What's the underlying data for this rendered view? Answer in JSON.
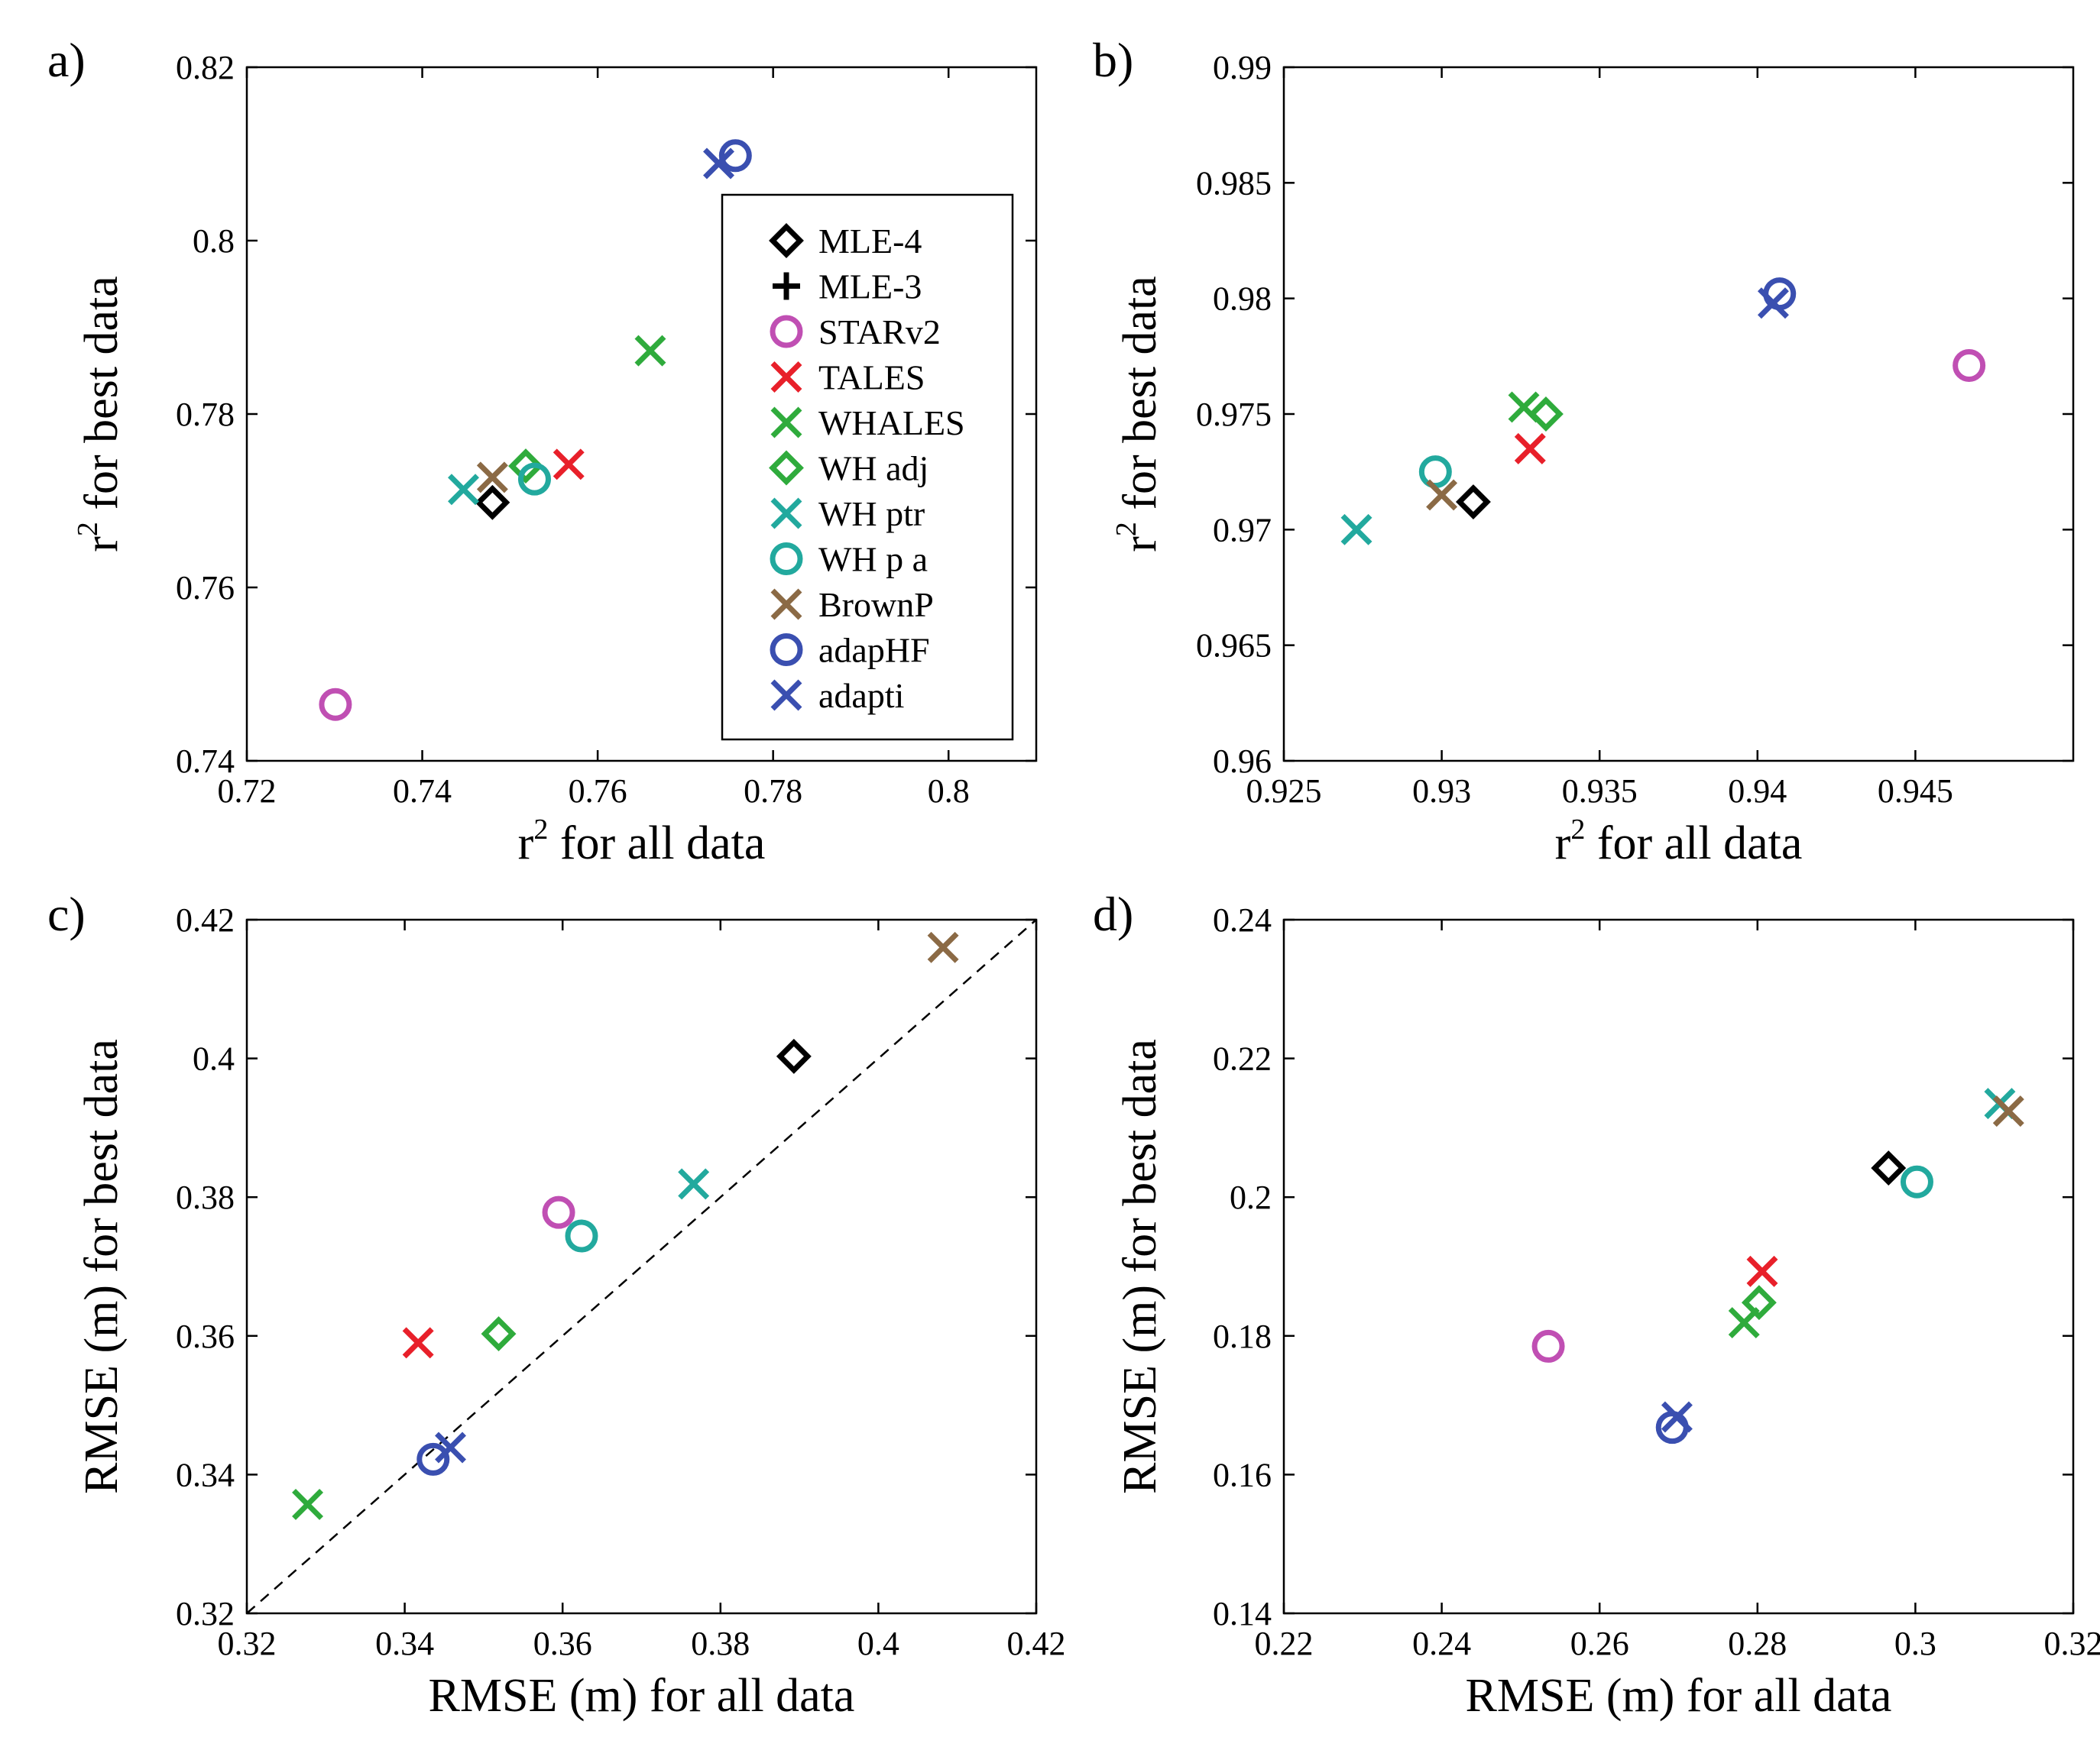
{
  "legend": [
    {
      "name": "MLE-4",
      "marker": "diamond",
      "color": "#000000"
    },
    {
      "name": "MLE-3",
      "marker": "plus",
      "color": "#000000"
    },
    {
      "name": "STARv2",
      "marker": "circle",
      "color": "#c04fb3"
    },
    {
      "name": "TALES",
      "marker": "x",
      "color": "#e8202a"
    },
    {
      "name": "WHALES",
      "marker": "x",
      "color": "#2fab3c"
    },
    {
      "name": "WH adj",
      "marker": "diamond",
      "color": "#2fab3c"
    },
    {
      "name": "WH ptr",
      "marker": "x",
      "color": "#22a99e"
    },
    {
      "name": "WH p a",
      "marker": "circle",
      "color": "#22a99e"
    },
    {
      "name": "BrownP",
      "marker": "x",
      "color": "#8b6a45"
    },
    {
      "name": "adapHF",
      "marker": "circle",
      "color": "#3a4fb0"
    },
    {
      "name": "adapti",
      "marker": "x",
      "color": "#3a4fb0"
    }
  ],
  "chart_data": [
    {
      "type": "scatter",
      "panel_label": "a)",
      "xlabel": "r",
      "ylabel": "r",
      "label_sup": "2",
      "xlabel_rest": " for all data",
      "ylabel_rest": " for best data",
      "xlim": [
        0.72,
        0.81
      ],
      "ylim": [
        0.74,
        0.82
      ],
      "xticks": [
        0.72,
        0.74,
        0.76,
        0.78,
        0.8
      ],
      "xtick_labels": [
        "0.72",
        "0.74",
        "0.76",
        "0.78",
        "0.8"
      ],
      "yticks": [
        0.74,
        0.76,
        0.78,
        0.8,
        0.82
      ],
      "ytick_labels": [
        "0.74",
        "0.76",
        "0.78",
        "0.8",
        "0.82"
      ],
      "legend": true,
      "points": [
        {
          "series": "MLE-4",
          "x": 0.748,
          "y": 0.7698
        },
        {
          "series": "STARv2",
          "x": 0.7301,
          "y": 0.7465
        },
        {
          "series": "TALES",
          "x": 0.7567,
          "y": 0.7742
        },
        {
          "series": "WHALES",
          "x": 0.766,
          "y": 0.7873
        },
        {
          "series": "WH adj",
          "x": 0.7518,
          "y": 0.774
        },
        {
          "series": "WH ptr",
          "x": 0.7447,
          "y": 0.7713
        },
        {
          "series": "WH p a",
          "x": 0.7528,
          "y": 0.7725
        },
        {
          "series": "BrownP",
          "x": 0.748,
          "y": 0.7727
        },
        {
          "series": "adapHF",
          "x": 0.7757,
          "y": 0.8098
        },
        {
          "series": "adapti",
          "x": 0.7738,
          "y": 0.8089
        }
      ]
    },
    {
      "type": "scatter",
      "panel_label": "b)",
      "xlabel": "r",
      "ylabel": "r",
      "label_sup": "2",
      "xlabel_rest": " for all data",
      "ylabel_rest": " for best data",
      "xlim": [
        0.925,
        0.95
      ],
      "ylim": [
        0.96,
        0.99
      ],
      "xticks": [
        0.925,
        0.93,
        0.935,
        0.94,
        0.945
      ],
      "xtick_labels": [
        "0.925",
        "0.93",
        "0.935",
        "0.94",
        "0.945"
      ],
      "yticks": [
        0.96,
        0.965,
        0.97,
        0.975,
        0.98,
        0.985,
        0.99
      ],
      "ytick_labels": [
        "0.96",
        "0.965",
        "0.97",
        "0.975",
        "0.98",
        "0.985",
        "0.99"
      ],
      "legend": false,
      "points": [
        {
          "series": "MLE-4",
          "x": 0.931,
          "y": 0.9712
        },
        {
          "series": "STARv2",
          "x": 0.9467,
          "y": 0.9771
        },
        {
          "series": "TALES",
          "x": 0.9328,
          "y": 0.9735
        },
        {
          "series": "WHALES",
          "x": 0.9326,
          "y": 0.9753
        },
        {
          "series": "WH adj",
          "x": 0.9333,
          "y": 0.975
        },
        {
          "series": "WH ptr",
          "x": 0.9273,
          "y": 0.97
        },
        {
          "series": "WH p a",
          "x": 0.9298,
          "y": 0.9725
        },
        {
          "series": "BrownP",
          "x": 0.93,
          "y": 0.9715
        },
        {
          "series": "adapHF",
          "x": 0.9407,
          "y": 0.9802
        },
        {
          "series": "adapti",
          "x": 0.9405,
          "y": 0.9798
        }
      ]
    },
    {
      "type": "scatter",
      "panel_label": "c)",
      "xlabel": "RMSE (m) for all data",
      "ylabel": "RMSE (m) for best data",
      "xlim": [
        0.32,
        0.42
      ],
      "ylim": [
        0.32,
        0.42
      ],
      "xticks": [
        0.32,
        0.34,
        0.36,
        0.38,
        0.4,
        0.42
      ],
      "xtick_labels": [
        "0.32",
        "0.34",
        "0.36",
        "0.38",
        "0.4",
        "0.42"
      ],
      "yticks": [
        0.32,
        0.34,
        0.36,
        0.38,
        0.4,
        0.42
      ],
      "ytick_labels": [
        "0.32",
        "0.34",
        "0.36",
        "0.38",
        "0.4",
        "0.42"
      ],
      "legend": false,
      "reference_line": "y = x (dashed)",
      "points": [
        {
          "series": "MLE-4",
          "x": 0.3893,
          "y": 0.4003
        },
        {
          "series": "STARv2",
          "x": 0.3595,
          "y": 0.3778
        },
        {
          "series": "TALES",
          "x": 0.3417,
          "y": 0.359
        },
        {
          "series": "WHALES",
          "x": 0.3277,
          "y": 0.3357
        },
        {
          "series": "WH adj",
          "x": 0.3519,
          "y": 0.3603
        },
        {
          "series": "WH ptr",
          "x": 0.3766,
          "y": 0.3819
        },
        {
          "series": "WH p a",
          "x": 0.3624,
          "y": 0.3744
        },
        {
          "series": "BrownP",
          "x": 0.4082,
          "y": 0.416
        },
        {
          "series": "adapHF",
          "x": 0.3436,
          "y": 0.3422
        },
        {
          "series": "adapti",
          "x": 0.3458,
          "y": 0.3439
        }
      ]
    },
    {
      "type": "scatter",
      "panel_label": "d)",
      "xlabel": "RMSE (m) for all data",
      "ylabel": "RMSE (m) for best data",
      "xlim": [
        0.22,
        0.32
      ],
      "ylim": [
        0.14,
        0.24
      ],
      "xticks": [
        0.22,
        0.24,
        0.26,
        0.28,
        0.3,
        0.32
      ],
      "xtick_labels": [
        "0.22",
        "0.24",
        "0.26",
        "0.28",
        "0.3",
        "0.32"
      ],
      "yticks": [
        0.14,
        0.16,
        0.18,
        0.2,
        0.22,
        0.24
      ],
      "ytick_labels": [
        "0.14",
        "0.16",
        "0.18",
        "0.2",
        "0.22",
        "0.24"
      ],
      "legend": false,
      "points": [
        {
          "series": "MLE-4",
          "x": 0.2966,
          "y": 0.2042
        },
        {
          "series": "STARv2",
          "x": 0.2535,
          "y": 0.1785
        },
        {
          "series": "TALES",
          "x": 0.2806,
          "y": 0.1893
        },
        {
          "series": "WHALES",
          "x": 0.2783,
          "y": 0.1819
        },
        {
          "series": "WH adj",
          "x": 0.2802,
          "y": 0.1848
        },
        {
          "series": "WH ptr",
          "x": 0.3107,
          "y": 0.2135
        },
        {
          "series": "WH p a",
          "x": 0.3002,
          "y": 0.2022
        },
        {
          "series": "BrownP",
          "x": 0.3118,
          "y": 0.2124
        },
        {
          "series": "adapHF",
          "x": 0.2692,
          "y": 0.1668
        },
        {
          "series": "adapti",
          "x": 0.2698,
          "y": 0.1683
        }
      ]
    }
  ]
}
